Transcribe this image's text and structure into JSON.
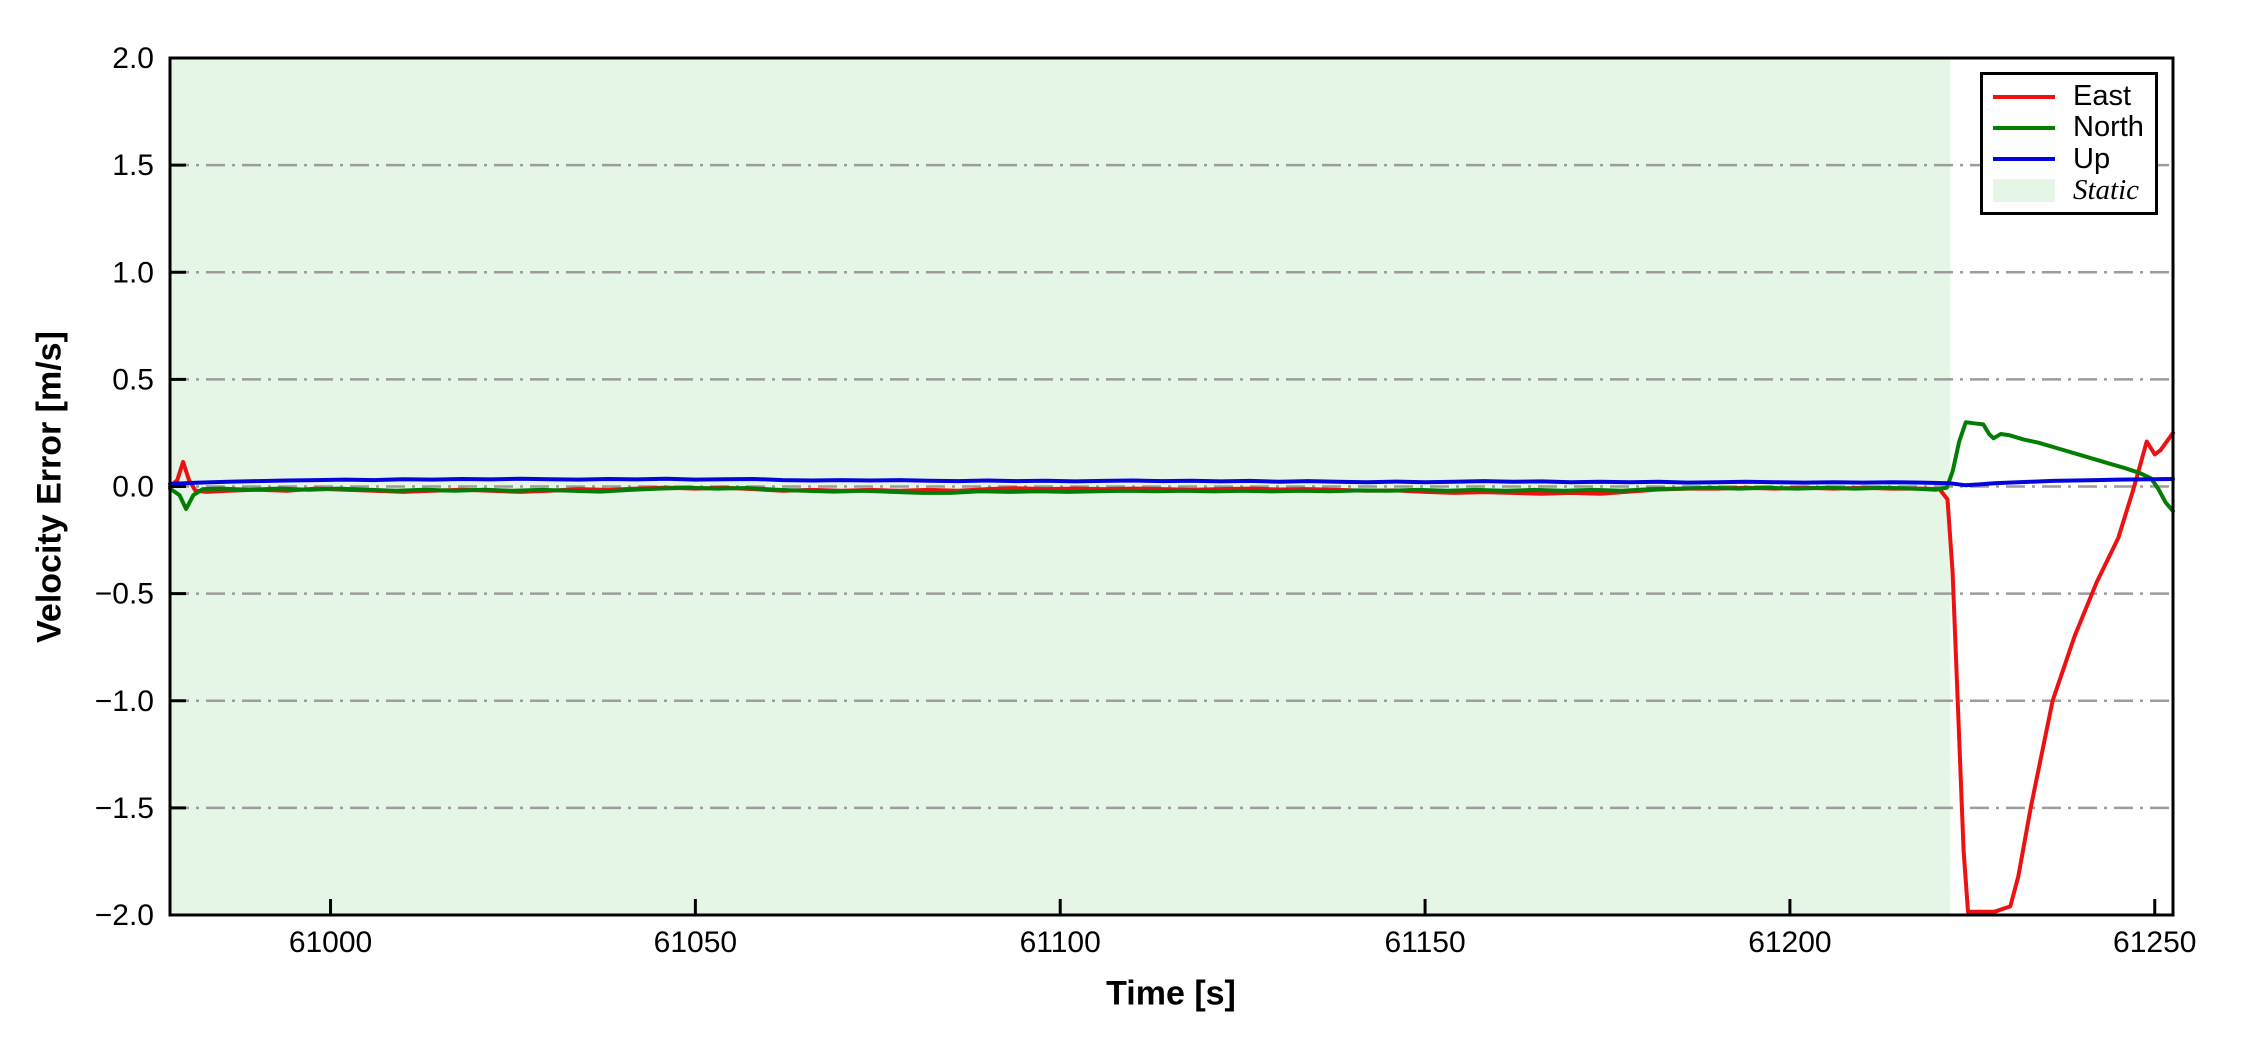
{
  "figure": {
    "xlabel": "Time [s]",
    "ylabel": "Velocity Error [m/s]"
  },
  "legend": {
    "entries": [
      {
        "label": "East",
        "color": "#ee1111",
        "type": "line"
      },
      {
        "label": "North",
        "color": "#047d04",
        "type": "line"
      },
      {
        "label": "Up",
        "color": "#0404dd",
        "type": "line"
      },
      {
        "label": "Static",
        "color": "#e6f6e6",
        "type": "patch"
      }
    ]
  },
  "chart_data": {
    "type": "line",
    "title": "",
    "xlabel": "Time [s]",
    "ylabel": "Velocity Error [m/s]",
    "xlim": [
      60978,
      61252.5
    ],
    "ylim": [
      -2.0,
      2.0
    ],
    "grid": {
      "axis": "y",
      "style": "dash-dot",
      "color": "#9c9c9c",
      "values": [
        1.5,
        1.0,
        0.5,
        0.0,
        -0.5,
        -1.0,
        -1.5
      ]
    },
    "x_ticks": [
      {
        "v": 61000,
        "label": "61000"
      },
      {
        "v": 61050,
        "label": "61050"
      },
      {
        "v": 61100,
        "label": "61100"
      },
      {
        "v": 61150,
        "label": "61150"
      },
      {
        "v": 61200,
        "label": "61200"
      },
      {
        "v": 61250,
        "label": "61250"
      }
    ],
    "y_ticks": [
      {
        "v": 2.0,
        "label": "2.0"
      },
      {
        "v": 1.5,
        "label": "1.5"
      },
      {
        "v": 1.0,
        "label": "1.0"
      },
      {
        "v": 0.5,
        "label": "0.5"
      },
      {
        "v": 0.0,
        "label": "0.0"
      },
      {
        "v": -0.5,
        "label": "−0.5"
      },
      {
        "v": -1.0,
        "label": "−1.0"
      },
      {
        "v": -1.5,
        "label": "−1.5"
      },
      {
        "v": -2.0,
        "label": "−2.0"
      }
    ],
    "static_region": {
      "label": "Static",
      "x_start": 60978,
      "x_end": 61222,
      "color": "#e6f6e6"
    },
    "series": [
      {
        "name": "East",
        "color": "#ee1111",
        "points": [
          [
            60978,
            0.0
          ],
          [
            60979,
            0.03
          ],
          [
            60979.8,
            0.115
          ],
          [
            60980.6,
            0.03
          ],
          [
            60981.5,
            -0.02
          ],
          [
            60983,
            -0.025
          ],
          [
            60986,
            -0.02
          ],
          [
            60990,
            -0.015
          ],
          [
            60994,
            -0.02
          ],
          [
            60998,
            -0.01
          ],
          [
            61002,
            -0.015
          ],
          [
            61006,
            -0.02
          ],
          [
            61010,
            -0.025
          ],
          [
            61014,
            -0.02
          ],
          [
            61018,
            -0.015
          ],
          [
            61022,
            -0.02
          ],
          [
            61026,
            -0.025
          ],
          [
            61030,
            -0.02
          ],
          [
            61034,
            -0.012
          ],
          [
            61038,
            -0.016
          ],
          [
            61042,
            -0.01
          ],
          [
            61046,
            -0.005
          ],
          [
            61050,
            -0.01
          ],
          [
            61054,
            -0.006
          ],
          [
            61058,
            -0.012
          ],
          [
            61062,
            -0.02
          ],
          [
            61066,
            -0.016
          ],
          [
            61070,
            -0.02
          ],
          [
            61074,
            -0.016
          ],
          [
            61078,
            -0.02
          ],
          [
            61082,
            -0.016
          ],
          [
            61086,
            -0.02
          ],
          [
            61090,
            -0.012
          ],
          [
            61094,
            -0.008
          ],
          [
            61098,
            -0.012
          ],
          [
            61102,
            -0.01
          ],
          [
            61106,
            -0.012
          ],
          [
            61110,
            -0.01
          ],
          [
            61114,
            -0.012
          ],
          [
            61118,
            -0.015
          ],
          [
            61122,
            -0.012
          ],
          [
            61126,
            -0.01
          ],
          [
            61130,
            -0.014
          ],
          [
            61134,
            -0.012
          ],
          [
            61138,
            -0.016
          ],
          [
            61142,
            -0.02
          ],
          [
            61146,
            -0.018
          ],
          [
            61150,
            -0.025
          ],
          [
            61154,
            -0.03
          ],
          [
            61158,
            -0.026
          ],
          [
            61162,
            -0.03
          ],
          [
            61166,
            -0.034
          ],
          [
            61170,
            -0.03
          ],
          [
            61174,
            -0.034
          ],
          [
            61178,
            -0.024
          ],
          [
            61182,
            -0.014
          ],
          [
            61186,
            -0.01
          ],
          [
            61190,
            -0.01
          ],
          [
            61194,
            -0.006
          ],
          [
            61198,
            -0.01
          ],
          [
            61202,
            -0.006
          ],
          [
            61206,
            -0.01
          ],
          [
            61210,
            -0.006
          ],
          [
            61214,
            -0.01
          ],
          [
            61218,
            -0.01
          ],
          [
            61220.5,
            -0.012
          ],
          [
            61221.6,
            -0.06
          ],
          [
            61222.3,
            -0.4
          ],
          [
            61223,
            -1.0
          ],
          [
            61223.8,
            -1.7
          ],
          [
            61224.4,
            -1.985
          ],
          [
            61226,
            -1.985
          ],
          [
            61228,
            -1.985
          ],
          [
            61230.2,
            -1.96
          ],
          [
            61231.3,
            -1.82
          ],
          [
            61233,
            -1.5
          ],
          [
            61236,
            -1.0
          ],
          [
            61239,
            -0.7
          ],
          [
            61242,
            -0.45
          ],
          [
            61245,
            -0.24
          ],
          [
            61247,
            -0.02
          ],
          [
            61247.6,
            0.05
          ],
          [
            61248.9,
            0.21
          ],
          [
            61250,
            0.15
          ],
          [
            61250.8,
            0.17
          ],
          [
            61252.5,
            0.25
          ]
        ]
      },
      {
        "name": "North",
        "color": "#047d04",
        "points": [
          [
            60978,
            -0.01
          ],
          [
            60979.3,
            -0.04
          ],
          [
            60980.2,
            -0.105
          ],
          [
            60981.2,
            -0.04
          ],
          [
            60982.5,
            -0.012
          ],
          [
            60985,
            -0.01
          ],
          [
            60989,
            -0.015
          ],
          [
            60993,
            -0.01
          ],
          [
            60997,
            -0.015
          ],
          [
            61001,
            -0.01
          ],
          [
            61005,
            -0.015
          ],
          [
            61009,
            -0.02
          ],
          [
            61013,
            -0.015
          ],
          [
            61017,
            -0.02
          ],
          [
            61021,
            -0.015
          ],
          [
            61025,
            -0.02
          ],
          [
            61029,
            -0.016
          ],
          [
            61033,
            -0.02
          ],
          [
            61037,
            -0.024
          ],
          [
            61041,
            -0.016
          ],
          [
            61045,
            -0.01
          ],
          [
            61049,
            -0.006
          ],
          [
            61053,
            -0.01
          ],
          [
            61057,
            -0.007
          ],
          [
            61061,
            -0.015
          ],
          [
            61065,
            -0.02
          ],
          [
            61069,
            -0.024
          ],
          [
            61073,
            -0.02
          ],
          [
            61077,
            -0.025
          ],
          [
            61081,
            -0.03
          ],
          [
            61085,
            -0.03
          ],
          [
            61089,
            -0.022
          ],
          [
            61093,
            -0.025
          ],
          [
            61097,
            -0.022
          ],
          [
            61101,
            -0.025
          ],
          [
            61105,
            -0.022
          ],
          [
            61109,
            -0.02
          ],
          [
            61113,
            -0.022
          ],
          [
            61117,
            -0.02
          ],
          [
            61121,
            -0.023
          ],
          [
            61125,
            -0.02
          ],
          [
            61129,
            -0.023
          ],
          [
            61133,
            -0.02
          ],
          [
            61137,
            -0.022
          ],
          [
            61141,
            -0.018
          ],
          [
            61145,
            -0.02
          ],
          [
            61149,
            -0.016
          ],
          [
            61153,
            -0.02
          ],
          [
            61157,
            -0.016
          ],
          [
            61161,
            -0.02
          ],
          [
            61165,
            -0.016
          ],
          [
            61169,
            -0.02
          ],
          [
            61173,
            -0.016
          ],
          [
            61177,
            -0.02
          ],
          [
            61181,
            -0.012
          ],
          [
            61185,
            -0.01
          ],
          [
            61189,
            -0.006
          ],
          [
            61193,
            -0.01
          ],
          [
            61197,
            -0.006
          ],
          [
            61201,
            -0.01
          ],
          [
            61205,
            -0.006
          ],
          [
            61209,
            -0.01
          ],
          [
            61213,
            -0.006
          ],
          [
            61217,
            -0.01
          ],
          [
            61220,
            -0.015
          ],
          [
            61221.5,
            -0.005
          ],
          [
            61222.3,
            0.07
          ],
          [
            61223.2,
            0.21
          ],
          [
            61224.1,
            0.3
          ],
          [
            61225.2,
            0.295
          ],
          [
            61226.5,
            0.29
          ],
          [
            61227.3,
            0.245
          ],
          [
            61227.9,
            0.225
          ],
          [
            61228.9,
            0.245
          ],
          [
            61230,
            0.24
          ],
          [
            61232,
            0.22
          ],
          [
            61234,
            0.205
          ],
          [
            61237,
            0.175
          ],
          [
            61240,
            0.145
          ],
          [
            61243,
            0.115
          ],
          [
            61246,
            0.085
          ],
          [
            61248,
            0.062
          ],
          [
            61249.5,
            0.038
          ],
          [
            61250.5,
            -0.012
          ],
          [
            61251.5,
            -0.075
          ],
          [
            61252.5,
            -0.115
          ]
        ]
      },
      {
        "name": "Up",
        "color": "#0404dd",
        "points": [
          [
            60978,
            0.012
          ],
          [
            60982,
            0.018
          ],
          [
            60986,
            0.022
          ],
          [
            60990,
            0.025
          ],
          [
            60994,
            0.028
          ],
          [
            60998,
            0.03
          ],
          [
            61002,
            0.032
          ],
          [
            61006,
            0.03
          ],
          [
            61010,
            0.034
          ],
          [
            61014,
            0.032
          ],
          [
            61018,
            0.035
          ],
          [
            61022,
            0.033
          ],
          [
            61026,
            0.036
          ],
          [
            61030,
            0.034
          ],
          [
            61034,
            0.032
          ],
          [
            61038,
            0.035
          ],
          [
            61042,
            0.033
          ],
          [
            61046,
            0.036
          ],
          [
            61050,
            0.032
          ],
          [
            61054,
            0.034
          ],
          [
            61058,
            0.035
          ],
          [
            61062,
            0.03
          ],
          [
            61066,
            0.028
          ],
          [
            61070,
            0.03
          ],
          [
            61074,
            0.028
          ],
          [
            61078,
            0.03
          ],
          [
            61082,
            0.027
          ],
          [
            61086,
            0.025
          ],
          [
            61090,
            0.028
          ],
          [
            61094,
            0.025
          ],
          [
            61098,
            0.027
          ],
          [
            61102,
            0.024
          ],
          [
            61106,
            0.026
          ],
          [
            61110,
            0.028
          ],
          [
            61114,
            0.025
          ],
          [
            61118,
            0.027
          ],
          [
            61122,
            0.024
          ],
          [
            61126,
            0.026
          ],
          [
            61130,
            0.022
          ],
          [
            61134,
            0.025
          ],
          [
            61138,
            0.022
          ],
          [
            61142,
            0.02
          ],
          [
            61146,
            0.023
          ],
          [
            61150,
            0.02
          ],
          [
            61154,
            0.022
          ],
          [
            61158,
            0.025
          ],
          [
            61162,
            0.022
          ],
          [
            61166,
            0.024
          ],
          [
            61170,
            0.02
          ],
          [
            61174,
            0.022
          ],
          [
            61178,
            0.02
          ],
          [
            61182,
            0.022
          ],
          [
            61186,
            0.018
          ],
          [
            61190,
            0.02
          ],
          [
            61194,
            0.022
          ],
          [
            61198,
            0.02
          ],
          [
            61202,
            0.018
          ],
          [
            61206,
            0.02
          ],
          [
            61210,
            0.018
          ],
          [
            61214,
            0.02
          ],
          [
            61218,
            0.018
          ],
          [
            61222,
            0.015
          ],
          [
            61224,
            0.006
          ],
          [
            61226,
            0.01
          ],
          [
            61228,
            0.015
          ],
          [
            61230,
            0.018
          ],
          [
            61233,
            0.022
          ],
          [
            61236,
            0.026
          ],
          [
            61239,
            0.028
          ],
          [
            61242,
            0.03
          ],
          [
            61245,
            0.032
          ],
          [
            61248,
            0.033
          ],
          [
            61250,
            0.034
          ],
          [
            61252.5,
            0.035
          ]
        ]
      }
    ]
  }
}
